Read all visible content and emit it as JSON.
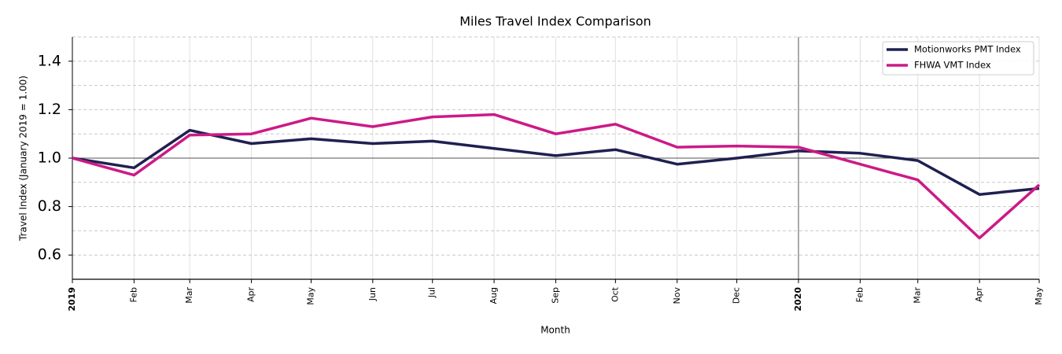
{
  "chart_data": {
    "type": "line",
    "title": "Miles Travel Index Comparison",
    "x_label": "Month",
    "y_label": "Travel Index (January 2019 = 1.00)",
    "x": [
      "2019-01",
      "2019-02",
      "2019-03",
      "2019-04",
      "2019-05",
      "2019-06",
      "2019-07",
      "2019-08",
      "2019-09",
      "2019-10",
      "2019-11",
      "2019-12",
      "2020-01",
      "2020-02",
      "2020-03",
      "2020-04",
      "2020-05"
    ],
    "xlim": [
      "2019-01",
      "2020-05"
    ],
    "xticks": [
      {
        "value": "2019-01",
        "label": "2019"
      },
      {
        "value": "2019-02",
        "label": "Feb"
      },
      {
        "value": "2019-03",
        "label": "Mar"
      },
      {
        "value": "2019-04",
        "label": "Apr"
      },
      {
        "value": "2019-05",
        "label": "May"
      },
      {
        "value": "2019-06",
        "label": "Jun"
      },
      {
        "value": "2019-07",
        "label": "Jul"
      },
      {
        "value": "2019-08",
        "label": "Aug"
      },
      {
        "value": "2019-09",
        "label": "Sep"
      },
      {
        "value": "2019-10",
        "label": "Oct"
      },
      {
        "value": "2019-11",
        "label": "Nov"
      },
      {
        "value": "2019-12",
        "label": "Dec"
      },
      {
        "value": "2020-01",
        "label": "2020"
      },
      {
        "value": "2020-02",
        "label": "Feb"
      },
      {
        "value": "2020-03",
        "label": "Mar"
      },
      {
        "value": "2020-04",
        "label": "Apr"
      },
      {
        "value": "2020-05",
        "label": "May"
      }
    ],
    "ylim": [
      0.5,
      1.5
    ],
    "yticks": [
      0.6,
      0.8,
      {
        "value": 1,
        "label": "1.0"
      },
      1.2,
      1.4
    ],
    "minor_yticks": [
      0.7,
      0.9,
      1.1,
      1.3,
      1.5
    ],
    "grid": true,
    "reference_y": 1,
    "reference_x": "2020-01",
    "legend": "upper right",
    "series": [
      {
        "name": "Motionworks PMT Index",
        "color": "#1f2050",
        "values": [
          1.0,
          0.96,
          1.115,
          1.06,
          1.08,
          1.06,
          1.07,
          1.04,
          1.01,
          1.035,
          0.975,
          1.0,
          1.03,
          1.02,
          0.99,
          0.85,
          0.875
        ]
      },
      {
        "name": "FHWA VMT Index",
        "color": "#cc1a87",
        "values": [
          1.0,
          0.93,
          1.095,
          1.1,
          1.165,
          1.13,
          1.17,
          1.18,
          1.1,
          1.14,
          1.045,
          1.05,
          1.045,
          0.975,
          0.91,
          0.67,
          0.89
        ]
      }
    ]
  }
}
